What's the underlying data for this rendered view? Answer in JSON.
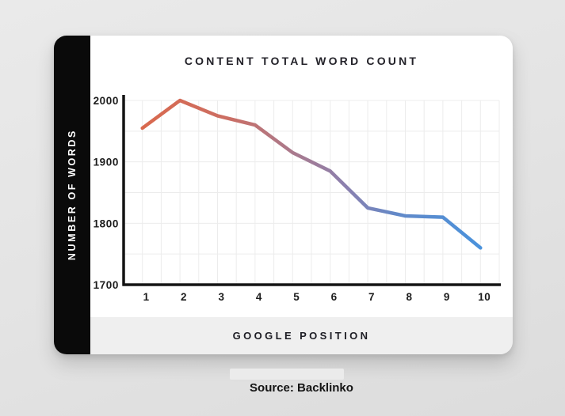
{
  "chart": {
    "title": "CONTENT TOTAL WORD COUNT",
    "y_axis_title": "NUMBER OF WORDS",
    "x_axis_title": "GOOGLE POSITION"
  },
  "source": {
    "label": "Source: Backlinko"
  },
  "colors": {
    "page_background": "#e3e3e3",
    "card_background": "#ffffff",
    "sidebar_background": "#0a0a0a",
    "footer_band_background": "#efefef",
    "axis_color": "#141414",
    "grid_color": "#ececec",
    "line_start_color": "#d9694e",
    "line_end_color": "#4a92dc"
  },
  "chart_data": {
    "type": "line",
    "title": "CONTENT TOTAL WORD COUNT",
    "xlabel": "GOOGLE POSITION",
    "ylabel": "NUMBER OF WORDS",
    "x": [
      1,
      2,
      3,
      4,
      5,
      6,
      7,
      8,
      9,
      10
    ],
    "values": [
      1955,
      2000,
      1975,
      1960,
      1915,
      1885,
      1825,
      1812,
      1810,
      1760
    ],
    "ylim": [
      1700,
      2000
    ],
    "yticks": [
      2000,
      1900,
      1800,
      1700
    ],
    "y_grid_step": 50,
    "grid": true,
    "legend": "none",
    "line_gradient": [
      {
        "offset": 0.0,
        "color": "#d9694e"
      },
      {
        "offset": 0.25,
        "color": "#cc6e63"
      },
      {
        "offset": 0.45,
        "color": "#a97a8e"
      },
      {
        "offset": 0.6,
        "color": "#8b80ae"
      },
      {
        "offset": 0.75,
        "color": "#6389c8"
      },
      {
        "offset": 1.0,
        "color": "#4a92dc"
      }
    ]
  }
}
